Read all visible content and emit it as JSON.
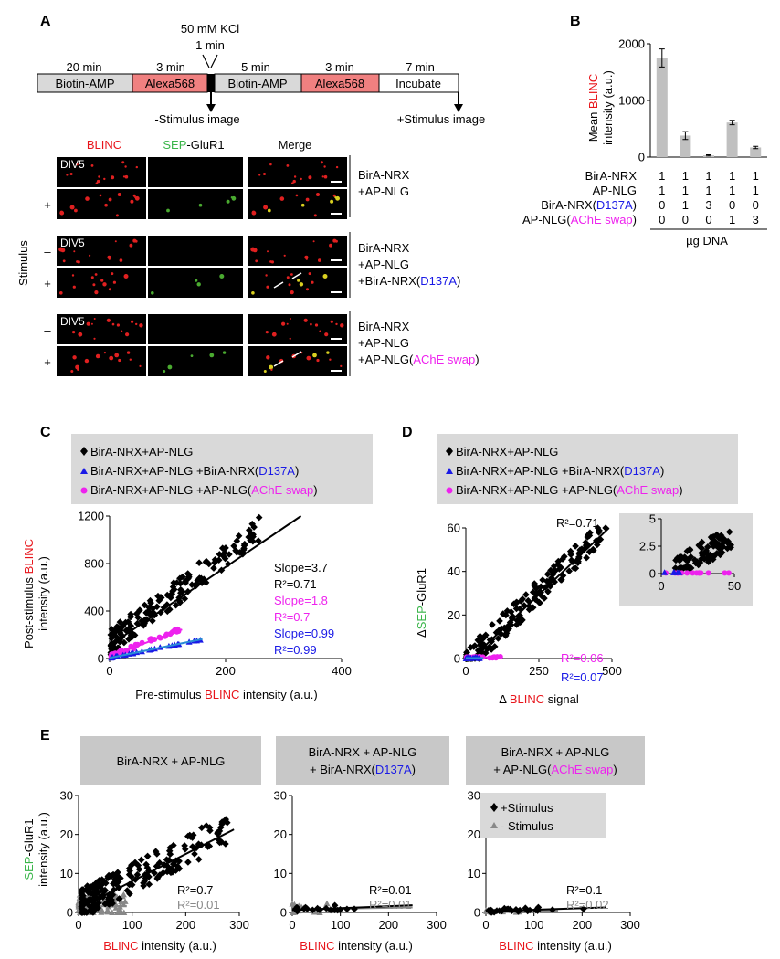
{
  "colors": {
    "red": "#e8151b",
    "green": "#3ab54a",
    "blue": "#1a1ae6",
    "magenta": "#ee22ee",
    "gray": "#888888",
    "box_gray": "#d9d9d9",
    "alexa_fill": "#f08080",
    "bar_gray": "#c0c0c0",
    "line_blue": "#2a8bd6"
  },
  "panel_labels": {
    "a": "A",
    "b": "B",
    "c": "C",
    "d": "D",
    "e": "E"
  },
  "timeline": {
    "kcl_label": "50 mM KCl",
    "kcl_duration": "1 min",
    "segments": [
      {
        "label": "Biotin-AMP",
        "duration": "20 min",
        "kind": "gray"
      },
      {
        "label": "Alexa568",
        "duration": "3 min",
        "kind": "red"
      },
      {
        "label": "Biotin-AMP",
        "duration": "5 min",
        "kind": "gray"
      },
      {
        "label": "Alexa568",
        "duration": "3 min",
        "kind": "red"
      },
      {
        "label": "Incubate",
        "duration": "7 min",
        "kind": "white"
      }
    ],
    "minus_image": "-Stimulus image",
    "plus_image": "+Stimulus image"
  },
  "micrographs": {
    "col_blinc": "BLINC",
    "col_sep": "SEP",
    "col_glur1": "-GluR1",
    "col_merge": "Merge",
    "stimulus_label": "Stimulus",
    "minus": "–",
    "plus": "+",
    "div_label": "DIV5",
    "groups": [
      {
        "lines": [
          "BirA-NRX",
          "+AP-NLG"
        ],
        "mutant_prefix": "",
        "mutant": "",
        "mutant_suffix": ""
      },
      {
        "lines": [
          "BirA-NRX",
          "+AP-NLG"
        ],
        "mutant_prefix": "+BirA-NRX(",
        "mutant": "D137A",
        "mutant_suffix": ")"
      },
      {
        "lines": [
          "BirA-NRX",
          "+AP-NLG"
        ],
        "mutant_prefix": "+AP-NLG(",
        "mutant": "AChE swap",
        "mutant_suffix": ")"
      }
    ]
  },
  "panel_b": {
    "ylabel_mean": "Mean ",
    "ylabel_blinc": "BLINC",
    "ylabel_2": "intensity (a.u.)",
    "row_labels": [
      "BirA-NRX",
      "AP-NLG",
      "BirA-NRX(",
      "AP-NLG("
    ],
    "row_label_suffix_blue": "D137A",
    "row_label_suffix_magenta": "AChE swap",
    "close_paren": ")",
    "table": [
      [
        "1",
        "1",
        "1",
        "1",
        "1"
      ],
      [
        "1",
        "1",
        "1",
        "1",
        "1"
      ],
      [
        "0",
        "1",
        "3",
        "0",
        "0"
      ],
      [
        "0",
        "0",
        "0",
        "1",
        "3"
      ]
    ],
    "dna_label": "µg DNA"
  },
  "panel_c": {
    "legend": [
      "BirA-NRX+AP-NLG",
      "BirA-NRX+AP-NLG +BirA-NRX(",
      "BirA-NRX+AP-NLG +AP-NLG("
    ],
    "legend_blue": "D137A",
    "legend_magenta": "AChE swap",
    "close_paren": ")",
    "stats": [
      {
        "text": "Slope=3.7",
        "color": "black"
      },
      {
        "text": "R²=0.71",
        "color": "black"
      },
      {
        "text": "Slope=1.8",
        "color": "magenta"
      },
      {
        "text": "R²=0.7",
        "color": "magenta"
      },
      {
        "text": "Slope=0.99",
        "color": "blue"
      },
      {
        "text": "R²=0.99",
        "color": "blue"
      }
    ],
    "ylabel_post": "Post-stimulus ",
    "ylabel_blinc": "BLINC",
    "ylabel_2": "intensity (a.u.)",
    "xlabel_pre": "Pre-stimulus ",
    "xlabel_blinc": "BLINC",
    "xlabel_post": " intensity (a.u.)"
  },
  "panel_d": {
    "r2_black": "R²=0.71",
    "r2_magenta": "R²=0.06",
    "r2_blue": "R²=0.07",
    "ylabel_delta": "Δ",
    "ylabel_sep": "SEP",
    "ylabel_glur1": "-GluR1",
    "xlabel_delta": "Δ ",
    "xlabel_blinc": "BLINC",
    "xlabel_signal": " signal"
  },
  "panel_e": {
    "titles": [
      {
        "lines": [
          "BirA-NRX + AP-NLG"
        ],
        "prefix": "",
        "mutant": "",
        "suffix": ""
      },
      {
        "lines": [
          "BirA-NRX + AP-NLG"
        ],
        "prefix": "+ BirA-NRX(",
        "mutant": "D137A",
        "suffix": ")"
      },
      {
        "lines": [
          "BirA-NRX + AP-NLG"
        ],
        "prefix": "+ AP-NLG(",
        "mutant": "AChE swap",
        "suffix": ")"
      }
    ],
    "ylabel_sep": "SEP",
    "ylabel_glur1": "-GluR1",
    "ylabel_2": "intensity (a.u.)",
    "xlabel_blinc": "BLINC",
    "xlabel_rest": " intensity (a.u.)",
    "legend_plus": "+Stimulus",
    "legend_minus": "- Stimulus",
    "r2": [
      {
        "plus": "R²=0.7",
        "minus": "R²=0.01"
      },
      {
        "plus": "R²=0.01",
        "minus": "R²=0.01"
      },
      {
        "plus": "R²=0.1",
        "minus": "R²=0.02"
      }
    ]
  },
  "chart_data": [
    {
      "id": "B",
      "type": "bar",
      "categories": [
        "1",
        "2",
        "3",
        "4",
        "5"
      ],
      "values": [
        1750,
        380,
        30,
        610,
        170
      ],
      "errors": [
        160,
        70,
        10,
        40,
        20
      ],
      "ylim": [
        0,
        2000
      ],
      "yticks": [
        "0",
        "1000",
        "2000"
      ]
    },
    {
      "id": "C",
      "type": "scatter",
      "xlim": [
        0,
        400
      ],
      "ylim": [
        0,
        1200
      ],
      "xticks": [
        "0",
        "200",
        "400"
      ],
      "yticks": [
        "0",
        "400",
        "800",
        "1200"
      ],
      "series": [
        {
          "name": "BirA-NRX+AP-NLG",
          "color": "black",
          "marker": "diamond",
          "slope": 3.7,
          "intercept": 110,
          "fit_x": [
            0,
            330
          ],
          "n": 170,
          "x_range": [
            2,
            260
          ],
          "noise": 170
        },
        {
          "name": "BirA-NRX+AP-NLG +AP-NLG(AChE swap)",
          "color": "magenta",
          "marker": "circle",
          "slope": 1.8,
          "intercept": 20,
          "fit_x": [
            0,
            125
          ],
          "n": 45,
          "x_range": [
            2,
            125
          ],
          "noise": 25
        },
        {
          "name": "BirA-NRX+AP-NLG +BirA-NRX(D137A)",
          "color": "blue",
          "marker": "triangle",
          "slope": 0.99,
          "intercept": 5,
          "fit_x": [
            0,
            160
          ],
          "n": 30,
          "x_range": [
            2,
            160
          ],
          "noise": 6
        }
      ]
    },
    {
      "id": "D",
      "type": "scatter",
      "xlim": [
        0,
        500
      ],
      "ylim": [
        0,
        60
      ],
      "xticks": [
        "0",
        "250",
        "500"
      ],
      "yticks": [
        "0",
        "20",
        "40",
        "60"
      ],
      "inset": {
        "xlim": [
          0,
          50
        ],
        "ylim": [
          0,
          5
        ],
        "xticks": [
          "0",
          "50"
        ],
        "yticks": [
          "0",
          "2.5",
          "5"
        ]
      },
      "series": [
        {
          "name": "BirA-NRX+AP-NLG",
          "color": "black",
          "marker": "diamond",
          "slope": 0.13,
          "intercept": -3,
          "fit_x": [
            20,
            490
          ],
          "n": 180,
          "x_range": [
            2,
            480
          ],
          "noise": 9
        },
        {
          "name": "BirA-NRX+AP-NLG +AP-NLG(AChE swap)",
          "color": "magenta",
          "marker": "circle",
          "slope": 0,
          "intercept": 0.5,
          "fit_x": [
            0,
            120
          ],
          "n": 30,
          "x_range": [
            2,
            120
          ],
          "noise": 0.5
        },
        {
          "name": "BirA-NRX+AP-NLG +BirA-NRX(D137A)",
          "color": "blue",
          "marker": "triangle",
          "slope": 0,
          "intercept": 0.2,
          "fit_x": [
            0,
            60
          ],
          "n": 20,
          "x_range": [
            0,
            50
          ],
          "noise": 0.3
        }
      ]
    },
    {
      "id": "E",
      "type": "scatter",
      "xlim": [
        0,
        300
      ],
      "ylim": [
        0,
        30
      ],
      "xticks": [
        "0",
        "100",
        "200",
        "300"
      ],
      "yticks": [
        "0",
        "10",
        "20",
        "30"
      ],
      "subplots": [
        {
          "plus": {
            "slope": 0.07,
            "intercept": 1,
            "fit_x": [
              0,
              290
            ],
            "n": 200,
            "x_range": [
              5,
              280
            ],
            "noise": 6
          },
          "minus": {
            "slope": 0.002,
            "intercept": 1.5,
            "fit_x": [
              0,
              90
            ],
            "n": 80,
            "x_range": [
              0,
              90
            ],
            "noise": 4
          }
        },
        {
          "plus": {
            "slope": 0.005,
            "intercept": 0.6,
            "fit_x": [
              0,
              250
            ],
            "n": 20,
            "x_range": [
              5,
              160
            ],
            "noise": 1
          },
          "minus": {
            "slope": 0.002,
            "intercept": 0.8,
            "fit_x": [
              0,
              250
            ],
            "n": 15,
            "x_range": [
              0,
              80
            ],
            "noise": 2
          }
        },
        {
          "plus": {
            "slope": 0.004,
            "intercept": 0.3,
            "fit_x": [
              0,
              250
            ],
            "n": 25,
            "x_range": [
              5,
              240
            ],
            "noise": 0.8
          },
          "minus": {
            "slope": 0.001,
            "intercept": 0.3,
            "fit_x": [
              0,
              150
            ],
            "n": 20,
            "x_range": [
              0,
              120
            ],
            "noise": 0.6
          }
        }
      ]
    }
  ]
}
